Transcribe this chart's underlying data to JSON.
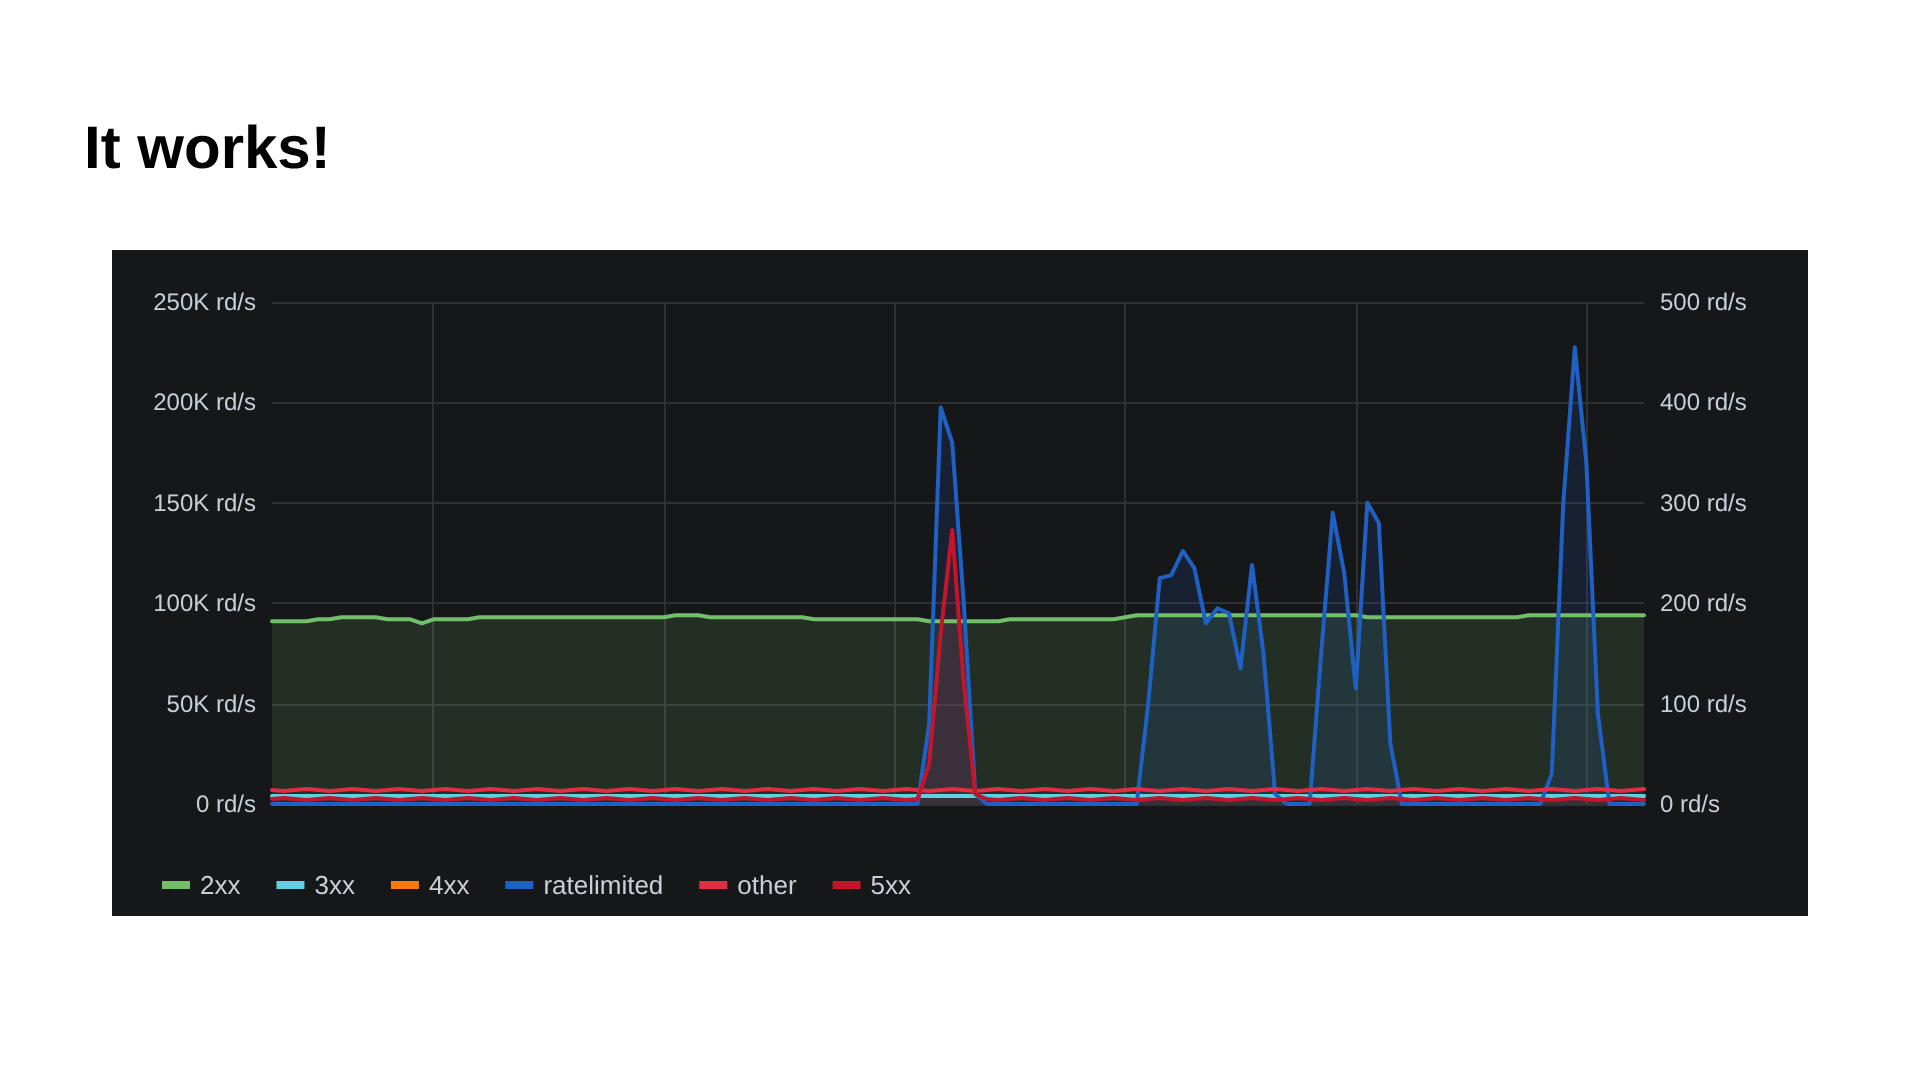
{
  "chart_data": {
    "type": "line",
    "title": "It works!",
    "categories": [
      null,
      null,
      null,
      null,
      null,
      null,
      null,
      null,
      null,
      null,
      null,
      null,
      null,
      null,
      null,
      null,
      null,
      null,
      null,
      null,
      null,
      null,
      null,
      null,
      null,
      null,
      null,
      null,
      null,
      null,
      null,
      null,
      null,
      null,
      null,
      null,
      null,
      null,
      null,
      null,
      null,
      null,
      null,
      null,
      null,
      null,
      null,
      null,
      null,
      null,
      null,
      null,
      null,
      null,
      null,
      null,
      null,
      null,
      null,
      null,
      null,
      null,
      null,
      null,
      null,
      null,
      null,
      null,
      null,
      null,
      null,
      null,
      null,
      null,
      null,
      null,
      null,
      null,
      null,
      null,
      null,
      null,
      null,
      null,
      null,
      null,
      null,
      null,
      null,
      null,
      null,
      null,
      null,
      null,
      null,
      null,
      null,
      null,
      null,
      null,
      null,
      null,
      null,
      null,
      null,
      null,
      null,
      null,
      null,
      null,
      null,
      null,
      null,
      null,
      null,
      null,
      null,
      null,
      null,
      null
    ],
    "series": [
      {
        "name": "2xx",
        "type": "area",
        "color": "#73bf69",
        "values": [
          91000,
          91000,
          91000,
          91000,
          92000,
          92000,
          93000,
          93000,
          93000,
          93000,
          92000,
          92000,
          92000,
          90000,
          92000,
          92000,
          92000,
          92000,
          93000,
          93000,
          93000,
          93000,
          93000,
          93000,
          93000,
          93000,
          93000,
          93000,
          93000,
          93000,
          93000,
          93000,
          93000,
          93000,
          93000,
          94000,
          94000,
          94000,
          93000,
          93000,
          93000,
          93000,
          93000,
          93000,
          93000,
          93000,
          93000,
          92000,
          92000,
          92000,
          92000,
          92000,
          92000,
          92000,
          92000,
          92000,
          92000,
          91000,
          91000,
          91000,
          91000,
          91000,
          91000,
          91000,
          92000,
          92000,
          92000,
          92000,
          92000,
          92000,
          92000,
          92000,
          92000,
          92000,
          93000,
          94000,
          94000,
          94000,
          94000,
          94000,
          94000,
          94000,
          94000,
          94000,
          94000,
          94000,
          94000,
          94000,
          94000,
          94000,
          94000,
          94000,
          94000,
          94000,
          94000,
          93000,
          93000,
          93000,
          93000,
          93000,
          93000,
          93000,
          93000,
          93000,
          93000,
          93000,
          93000,
          93000,
          93000,
          94000,
          94000,
          94000,
          94000,
          94000,
          94000,
          94000,
          94000,
          94000,
          94000,
          94000
        ]
      },
      {
        "name": "3xx",
        "type": "line",
        "color": "#5fd0e0",
        "values": [
          4000,
          4000,
          4000,
          4000,
          4000,
          4000,
          4000,
          4000,
          4000,
          4000,
          4000,
          4000,
          4000,
          4000,
          4000,
          4000,
          4000,
          4000,
          4000,
          4000,
          4000,
          4000,
          4000,
          4000,
          4000,
          4000,
          4000,
          4000,
          4000,
          4000,
          4000,
          4000,
          4000,
          4000,
          4000,
          4000,
          4000,
          4000,
          4000,
          4000,
          4000,
          4000,
          4000,
          4000,
          4000,
          4000,
          4000,
          4000,
          4000,
          4000,
          4000,
          4000,
          4000,
          4000,
          4000,
          4000,
          4000,
          4000,
          4000,
          4000,
          4000,
          4000,
          4000,
          4000,
          4000,
          4000,
          4000,
          4000,
          4000,
          4000,
          4000,
          4000,
          4000,
          4000,
          4000,
          4000,
          4000,
          4000,
          4000,
          4000,
          4000,
          4000,
          4000,
          4000,
          4000,
          4000,
          4000,
          4000,
          4000,
          4000,
          4000,
          4000,
          4000,
          4000,
          4000,
          4000,
          4000,
          4000,
          4000,
          4000,
          4000,
          4000,
          4000,
          4000,
          4000,
          4000,
          4000,
          4000,
          4000,
          4000,
          4000,
          4000,
          4000,
          4000,
          4000,
          4000,
          4000,
          4000,
          4000,
          4000
        ]
      },
      {
        "name": "4xx",
        "type": "line",
        "color": "#ff780a",
        "values": [
          null,
          null,
          null,
          null,
          null,
          null,
          null,
          null,
          null,
          null,
          null,
          null,
          null,
          null,
          null,
          null,
          null,
          null,
          null,
          null,
          null,
          null,
          null,
          null,
          null,
          null,
          null,
          null,
          null,
          null,
          null,
          null,
          null,
          null,
          null,
          null,
          null,
          null,
          null,
          null,
          null,
          null,
          null,
          null,
          null,
          null,
          null,
          null,
          null,
          null,
          null,
          null,
          null,
          null,
          null,
          null,
          null,
          null,
          null,
          null,
          null,
          null,
          null,
          null,
          null,
          null,
          null,
          null,
          null,
          null,
          null,
          null,
          null,
          null,
          null,
          null,
          null,
          null,
          null,
          null,
          null,
          null,
          null,
          null,
          null,
          null,
          null,
          null,
          null,
          null,
          null,
          null,
          null,
          null,
          null,
          null,
          null,
          null,
          null,
          null,
          null,
          null,
          null,
          null,
          null,
          null,
          null,
          null,
          null,
          null,
          null,
          null,
          null,
          null,
          null,
          null,
          null,
          null,
          null,
          null
        ]
      },
      {
        "name": "ratelimited",
        "type": "area",
        "axis": "y2",
        "color": "#1f60c4",
        "values": [
          0,
          0,
          0,
          0,
          0,
          0,
          0,
          0,
          0,
          0,
          0,
          0,
          0,
          0,
          0,
          0,
          0,
          0,
          0,
          0,
          0,
          0,
          0,
          0,
          0,
          0,
          0,
          0,
          0,
          0,
          0,
          0,
          0,
          0,
          0,
          0,
          0,
          0,
          0,
          0,
          0,
          0,
          0,
          0,
          0,
          0,
          0,
          0,
          0,
          0,
          0,
          0,
          0,
          0,
          0,
          0,
          0,
          80,
          395,
          360,
          200,
          10,
          0,
          0,
          0,
          0,
          0,
          0,
          0,
          0,
          0,
          0,
          0,
          0,
          0,
          0,
          100,
          225,
          228,
          252,
          235,
          180,
          195,
          190,
          135,
          238,
          150,
          10,
          0,
          0,
          0,
          150,
          290,
          230,
          115,
          300,
          280,
          60,
          0,
          0,
          0,
          0,
          0,
          0,
          0,
          0,
          0,
          0,
          0,
          0,
          0,
          30,
          300,
          455,
          340,
          90,
          0,
          0,
          0,
          0
        ]
      },
      {
        "name": "other",
        "type": "line",
        "axis": "y2",
        "color": "#e02f44",
        "values": [
          14,
          13,
          14,
          15,
          14,
          13,
          14,
          15,
          14,
          13,
          14,
          15,
          14,
          13,
          14,
          15,
          14,
          13,
          14,
          15,
          14,
          13,
          14,
          15,
          14,
          13,
          14,
          15,
          14,
          13,
          14,
          15,
          14,
          13,
          14,
          15,
          14,
          13,
          14,
          15,
          14,
          13,
          14,
          15,
          14,
          13,
          14,
          15,
          14,
          13,
          14,
          15,
          14,
          13,
          14,
          15,
          14,
          13,
          14,
          15,
          14,
          13,
          14,
          15,
          14,
          13,
          14,
          15,
          14,
          13,
          14,
          15,
          14,
          13,
          14,
          15,
          14,
          13,
          14,
          15,
          14,
          13,
          14,
          15,
          14,
          13,
          14,
          15,
          14,
          13,
          14,
          15,
          14,
          13,
          14,
          15,
          14,
          13,
          14,
          15,
          14,
          13,
          14,
          15,
          14,
          13,
          14,
          15,
          14,
          13,
          14,
          15,
          14,
          13,
          14,
          15,
          14,
          13,
          14,
          15
        ]
      },
      {
        "name": "5xx",
        "type": "area",
        "axis": "y2",
        "color": "#c4162a",
        "values": [
          5,
          6,
          5,
          4,
          5,
          6,
          5,
          4,
          5,
          6,
          5,
          4,
          5,
          6,
          5,
          4,
          5,
          6,
          5,
          4,
          5,
          6,
          5,
          4,
          5,
          6,
          5,
          4,
          5,
          6,
          5,
          4,
          5,
          6,
          5,
          4,
          5,
          6,
          5,
          4,
          5,
          6,
          5,
          4,
          5,
          6,
          5,
          4,
          5,
          6,
          5,
          4,
          5,
          6,
          5,
          4,
          5,
          40,
          170,
          273,
          120,
          10,
          5,
          4,
          5,
          6,
          5,
          4,
          5,
          6,
          5,
          4,
          5,
          6,
          5,
          4,
          5,
          6,
          5,
          4,
          5,
          6,
          5,
          4,
          5,
          6,
          5,
          4,
          5,
          6,
          5,
          4,
          5,
          6,
          5,
          4,
          5,
          6,
          5,
          4,
          5,
          6,
          5,
          4,
          5,
          6,
          5,
          4,
          5,
          6,
          5,
          4,
          5,
          6,
          5,
          4,
          5,
          6,
          5,
          4
        ]
      }
    ],
    "ylim": [
      0,
      250000
    ],
    "yticks": [
      {
        "value": 0,
        "label": "0 rd/s"
      },
      {
        "value": 50000,
        "label": "50K rd/s"
      },
      {
        "value": 100000,
        "label": "100K rd/s"
      },
      {
        "value": 150000,
        "label": "150K rd/s"
      },
      {
        "value": 200000,
        "label": "200K rd/s"
      },
      {
        "value": 250000,
        "label": "250K rd/s"
      }
    ],
    "y2lim": [
      0,
      500
    ],
    "y2ticks": [
      {
        "value": 0,
        "label": "0 rd/s"
      },
      {
        "value": 100,
        "label": "100 rd/s"
      },
      {
        "value": 200,
        "label": "200 rd/s"
      },
      {
        "value": 300,
        "label": "300 rd/s"
      },
      {
        "value": 400,
        "label": "400 rd/s"
      },
      {
        "value": 500,
        "label": "500 rd/s"
      }
    ],
    "grid": true,
    "legend": "bottom",
    "marker": "none",
    "tick_labels": "y"
  }
}
